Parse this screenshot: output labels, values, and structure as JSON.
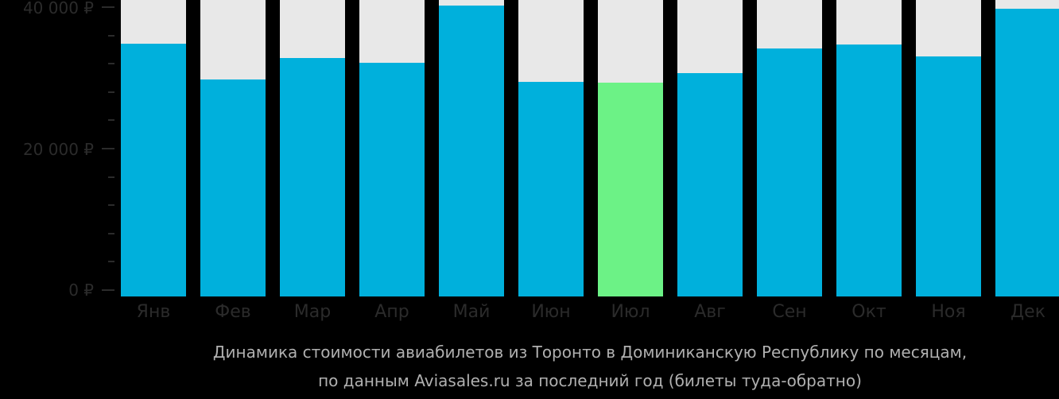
{
  "chart_data": {
    "type": "bar",
    "title": "Динамика стоимости авиабилетов из Торонто в Доминиканскую Республику по месяцам, по данным Aviasales.ru за последний год (билеты туда-обратно)",
    "xlabel": "",
    "ylabel": "",
    "ylim": [
      0,
      40000
    ],
    "yticks": [
      "0 ₽",
      "20 000 ₽",
      "40 000 ₽"
    ],
    "categories": [
      "Янв",
      "Фев",
      "Мар",
      "Апр",
      "Май",
      "Июн",
      "Июл",
      "Авг",
      "Сен",
      "Окт",
      "Ноя",
      "Дек"
    ],
    "values": [
      34800,
      29800,
      32800,
      32100,
      40200,
      29400,
      29300,
      30700,
      34200,
      34700,
      33000,
      39800
    ],
    "highlight_index": 6,
    "colors": {
      "bar": "#00b0dc",
      "highlight": "#6cf286",
      "background_track": "#e8e8e8"
    },
    "grid": false,
    "legend": null
  },
  "axis": {
    "y_top": "40 000 ₽",
    "y_mid": "20 000 ₽",
    "y_zero": "0 ₽"
  },
  "caption": {
    "line1": "Динамика стоимости авиабилетов из Торонто в Доминиканскую Республику по месяцам,",
    "line2": "по данным Aviasales.ru за последний год (билеты туда-обратно)"
  }
}
